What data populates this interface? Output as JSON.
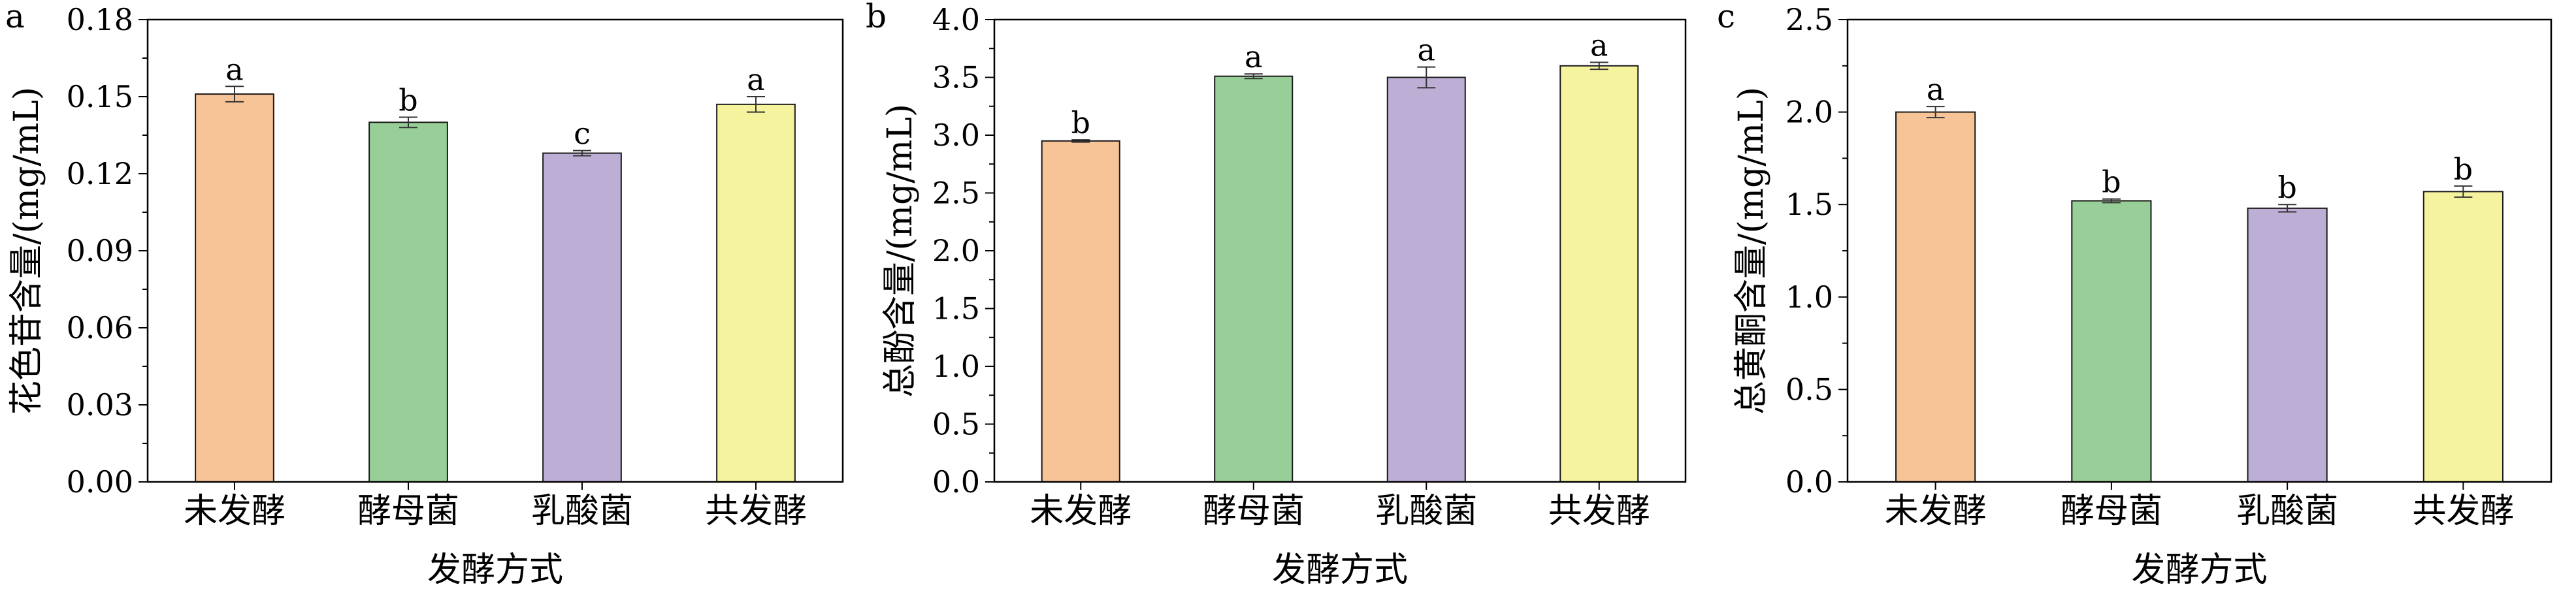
{
  "chart_data": [
    {
      "type": "bar",
      "panel": "a",
      "categories": [
        "未发酵",
        "酵母菌",
        "乳酸菌",
        "共发酵"
      ],
      "values": [
        0.151,
        0.14,
        0.128,
        0.147
      ],
      "errors": [
        0.003,
        0.002,
        0.001,
        0.003
      ],
      "labels": [
        "a",
        "b",
        "c",
        "a"
      ],
      "colors": [
        "#F7C497",
        "#98CF98",
        "#BDAED5",
        "#F5F39D"
      ],
      "ylabel": "花色苷含量/(mg/mL)",
      "xlabel": "发酵方式",
      "ylim": [
        0,
        0.18
      ],
      "yticks": [
        "0.00",
        "0.03",
        "0.06",
        "0.09",
        "0.12",
        "0.15",
        "0.18"
      ]
    },
    {
      "type": "bar",
      "panel": "b",
      "categories": [
        "未发酵",
        "酵母菌",
        "乳酸菌",
        "共发酵"
      ],
      "values": [
        2.95,
        3.51,
        3.5,
        3.6
      ],
      "errors": [
        0.01,
        0.02,
        0.09,
        0.03
      ],
      "labels": [
        "b",
        "a",
        "a",
        "a"
      ],
      "colors": [
        "#F7C497",
        "#98CF98",
        "#BDAED5",
        "#F5F39D"
      ],
      "ylabel": "总酚含量/(mg/mL)",
      "xlabel": "发酵方式",
      "ylim": [
        0,
        4.0
      ],
      "yticks": [
        "0.0",
        "0.5",
        "1.0",
        "1.5",
        "2.0",
        "2.5",
        "3.0",
        "3.5",
        "4.0"
      ]
    },
    {
      "type": "bar",
      "panel": "c",
      "categories": [
        "未发酵",
        "酵母菌",
        "乳酸菌",
        "共发酵"
      ],
      "values": [
        2.0,
        1.52,
        1.48,
        1.57
      ],
      "errors": [
        0.03,
        0.01,
        0.02,
        0.03
      ],
      "labels": [
        "a",
        "b",
        "b",
        "b"
      ],
      "colors": [
        "#F7C497",
        "#98CF98",
        "#BDAED5",
        "#F5F39D"
      ],
      "ylabel": "总黄酮含量/(mg/mL)",
      "xlabel": "发酵方式",
      "ylim": [
        0,
        2.5
      ],
      "yticks": [
        "0.0",
        "0.5",
        "1.0",
        "1.5",
        "2.0",
        "2.5"
      ]
    }
  ]
}
